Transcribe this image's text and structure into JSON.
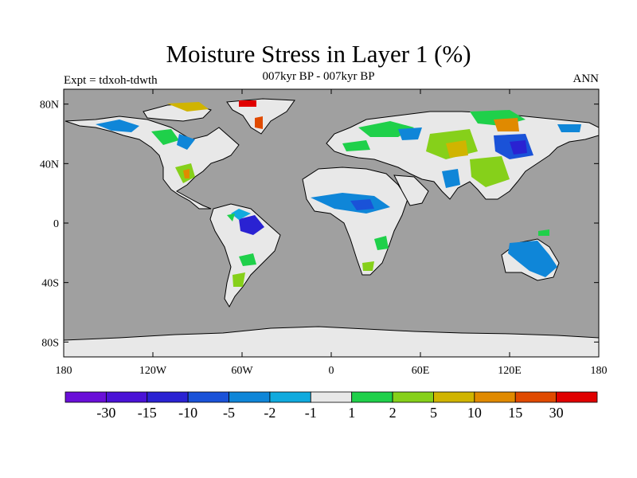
{
  "header": {
    "title": "Moisture Stress in Layer 1 (%)",
    "subtitle": "007kyr BP - 007kyr BP",
    "left_label": "Expt = tdxoh-tdwth",
    "right_label": "ANN"
  },
  "map": {
    "projection": "cylindrical-equidistant",
    "lon_range": [
      -180,
      180
    ],
    "lat_range": [
      -90,
      90
    ],
    "ocean_color": "#a0a0a0",
    "land_base_color": "#e8e8e8",
    "lat_ticks": [
      {
        "value": 80,
        "label": "80N"
      },
      {
        "value": 40,
        "label": "40N"
      },
      {
        "value": 0,
        "label": "0"
      },
      {
        "value": -40,
        "label": "40S"
      },
      {
        "value": -80,
        "label": "80S"
      }
    ],
    "lon_ticks": [
      {
        "value": -180,
        "label": "180"
      },
      {
        "value": -120,
        "label": "120W"
      },
      {
        "value": -60,
        "label": "60W"
      },
      {
        "value": 0,
        "label": "0"
      },
      {
        "value": 60,
        "label": "60E"
      },
      {
        "value": 120,
        "label": "120E"
      },
      {
        "value": 180,
        "label": "180"
      }
    ]
  },
  "colorbar": {
    "colors": [
      "#6a0fd8",
      "#4a12d6",
      "#2a22d2",
      "#1a52d8",
      "#0f86d8",
      "#10aade",
      "#e8e8e8",
      "#1fd04a",
      "#86d01a",
      "#d0b400",
      "#e08a00",
      "#e04a00",
      "#e00000"
    ],
    "labels": [
      "-30",
      "-15",
      "-10",
      "-5",
      "-2",
      "-1",
      "1",
      "2",
      "5",
      "10",
      "15",
      "30"
    ]
  }
}
